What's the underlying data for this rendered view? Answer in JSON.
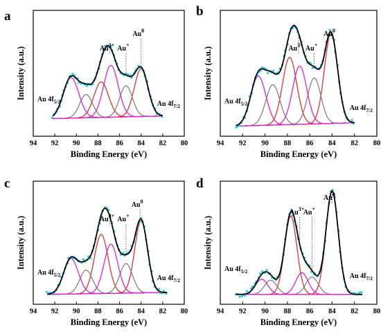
{
  "figure": {
    "panels": [
      {
        "letter": "a"
      },
      {
        "letter": "b"
      },
      {
        "letter": "c"
      },
      {
        "letter": "d"
      }
    ]
  },
  "colors": {
    "envelope": "#000000",
    "points": "#35c8e0",
    "au0_component": "#e0302a",
    "au_plus_component": "#808080",
    "au3_component": "#e020d0",
    "background": "#9b1010"
  },
  "chart_data": [
    {
      "panel": "a",
      "type": "line",
      "xlabel": "Binding Energy (eV)",
      "ylabel": "Intensity (a.u.)",
      "xlim": [
        94,
        80
      ],
      "xticks": [
        94,
        92,
        90,
        88,
        86,
        84,
        82,
        80
      ],
      "y_ticks_shown": false,
      "peak_labels": [
        {
          "text": "Au",
          "sup": "0",
          "x": 84.0
        },
        {
          "text": "Au",
          "sup": "+",
          "x": 85.4
        },
        {
          "text": "Au",
          "sup": "3+",
          "x": 86.9
        }
      ],
      "orbital_labels": [
        {
          "text": "Au 4f",
          "sub": "5/2",
          "near_x": 92.5
        },
        {
          "text": "Au 4f",
          "sub": "7/2",
          "near_x": 82.0
        }
      ],
      "data_range": [
        92.2,
        82.0
      ],
      "background": [
        0.0,
        0.03
      ],
      "components": [
        {
          "name": "Au0 4f7/2",
          "center": 84.0,
          "height": 0.55,
          "fwhm": 1.5,
          "color_key": "au0_component"
        },
        {
          "name": "Au0 4f5/2",
          "center": 87.7,
          "height": 0.41,
          "fwhm": 1.6,
          "color_key": "au0_component"
        },
        {
          "name": "Au+ 4f7/2",
          "center": 85.4,
          "height": 0.36,
          "fwhm": 1.4,
          "color_key": "au_plus_component"
        },
        {
          "name": "Au+ 4f5/2",
          "center": 89.1,
          "height": 0.27,
          "fwhm": 1.4,
          "color_key": "au_plus_component"
        },
        {
          "name": "Au3+ 4f7/2",
          "center": 86.8,
          "height": 0.6,
          "fwhm": 1.6,
          "color_key": "au3_component"
        },
        {
          "name": "Au3+ 4f5/2",
          "center": 90.5,
          "height": 0.47,
          "fwhm": 1.7,
          "color_key": "au3_component"
        }
      ]
    },
    {
      "panel": "b",
      "type": "line",
      "xlabel": "Binding Energy (eV)",
      "ylabel": "Intensity (a.u.)",
      "xlim": [
        94,
        80
      ],
      "xticks": [
        94,
        92,
        90,
        88,
        86,
        84,
        82,
        80
      ],
      "y_ticks_shown": false,
      "peak_labels": [
        {
          "text": "Au",
          "sup": "0",
          "x": 84.0
        },
        {
          "text": "Au",
          "sup": "+",
          "x": 85.6
        },
        {
          "text": "Au",
          "sup": "3+",
          "x": 87.0
        }
      ],
      "orbital_labels": [
        {
          "text": "Au 4f",
          "sub": "5/2",
          "near_x": 92.3
        },
        {
          "text": "Au 4f",
          "sub": "7/2",
          "near_x": 82.2
        }
      ],
      "data_range": [
        92.6,
        82.0
      ],
      "background": [
        0.0,
        0.03
      ],
      "components": [
        {
          "name": "Au0 4f7/2",
          "center": 84.1,
          "height": 0.8,
          "fwhm": 1.4,
          "color_key": "au0_component"
        },
        {
          "name": "Au0 4f5/2",
          "center": 87.8,
          "height": 0.6,
          "fwhm": 1.5,
          "color_key": "au0_component"
        },
        {
          "name": "Au+ 4f7/2",
          "center": 85.6,
          "height": 0.41,
          "fwhm": 1.4,
          "color_key": "au_plus_component"
        },
        {
          "name": "Au+ 4f5/2",
          "center": 89.3,
          "height": 0.36,
          "fwhm": 1.5,
          "color_key": "au_plus_component"
        },
        {
          "name": "Au3+ 4f7/2",
          "center": 86.9,
          "height": 0.52,
          "fwhm": 1.5,
          "color_key": "au3_component"
        },
        {
          "name": "Au3+ 4f5/2",
          "center": 90.6,
          "height": 0.44,
          "fwhm": 1.6,
          "color_key": "au3_component"
        }
      ]
    },
    {
      "panel": "c",
      "type": "line",
      "xlabel": "Binding Energy (eV)",
      "ylabel": "Intensity (a.u.)",
      "xlim": [
        94,
        80
      ],
      "xticks": [
        94,
        92,
        90,
        88,
        86,
        84,
        82,
        80
      ],
      "y_ticks_shown": false,
      "peak_labels": [
        {
          "text": "Au",
          "sup": "0",
          "x": 84.1
        },
        {
          "text": "Au",
          "sup": "+",
          "x": 85.4
        },
        {
          "text": "Au",
          "sup": "3+",
          "x": 86.9
        }
      ],
      "orbital_labels": [
        {
          "text": "Au 4f",
          "sub": "5/2",
          "near_x": 92.6
        },
        {
          "text": "Au 4f",
          "sub": "7/2",
          "near_x": 81.8
        }
      ],
      "data_range": [
        92.7,
        81.6
      ],
      "background": [
        0.0,
        0.02
      ],
      "components": [
        {
          "name": "Au0 4f7/2",
          "center": 84.0,
          "height": 0.73,
          "fwhm": 1.4,
          "color_key": "au0_component"
        },
        {
          "name": "Au0 4f5/2",
          "center": 87.7,
          "height": 0.6,
          "fwhm": 1.5,
          "color_key": "au0_component"
        },
        {
          "name": "Au+ 4f7/2",
          "center": 85.4,
          "height": 0.3,
          "fwhm": 1.4,
          "color_key": "au_plus_component"
        },
        {
          "name": "Au+ 4f5/2",
          "center": 89.1,
          "height": 0.24,
          "fwhm": 1.4,
          "color_key": "au_plus_component"
        },
        {
          "name": "Au3+ 4f7/2",
          "center": 86.8,
          "height": 0.5,
          "fwhm": 1.5,
          "color_key": "au3_component"
        },
        {
          "name": "Au3+ 4f5/2",
          "center": 90.5,
          "height": 0.36,
          "fwhm": 1.6,
          "color_key": "au3_component"
        }
      ]
    },
    {
      "panel": "d",
      "type": "line",
      "xlabel": "Binding Energy (eV)",
      "ylabel": "Intensity (a.u.)",
      "xlim": [
        94,
        80
      ],
      "xticks": [
        94,
        92,
        90,
        88,
        86,
        84,
        82,
        80
      ],
      "y_ticks_shown": false,
      "peak_labels": [
        {
          "text": "Au",
          "sup": "0",
          "x": 84.0
        },
        {
          "text": "Au",
          "sup": "+",
          "x": 85.8
        },
        {
          "text": "Au",
          "sup": "3+",
          "x": 86.9
        }
      ],
      "orbital_labels": [
        {
          "text": "Au 4f",
          "sub": "5/2",
          "near_x": 92.3
        },
        {
          "text": "Au 4f",
          "sub": "7/2",
          "near_x": 81.9
        }
      ],
      "data_range": [
        92.6,
        81.3
      ],
      "background": [
        0.0,
        0.0
      ],
      "components": [
        {
          "name": "Au0 4f7/2",
          "center": 84.0,
          "height": 0.95,
          "fwhm": 1.3,
          "color_key": "au0_component"
        },
        {
          "name": "Au0 4f5/2",
          "center": 87.7,
          "height": 0.72,
          "fwhm": 1.3,
          "color_key": "au0_component"
        },
        {
          "name": "Au+ 4f7/2",
          "center": 85.8,
          "height": 0.16,
          "fwhm": 1.3,
          "color_key": "au_plus_component"
        },
        {
          "name": "Au+ 4f5/2",
          "center": 89.5,
          "height": 0.13,
          "fwhm": 1.3,
          "color_key": "au_plus_component"
        },
        {
          "name": "Au3+ 4f7/2",
          "center": 86.7,
          "height": 0.2,
          "fwhm": 1.3,
          "color_key": "au3_component"
        },
        {
          "name": "Au3+ 4f5/2",
          "center": 90.3,
          "height": 0.14,
          "fwhm": 1.3,
          "color_key": "au3_component"
        }
      ]
    }
  ]
}
